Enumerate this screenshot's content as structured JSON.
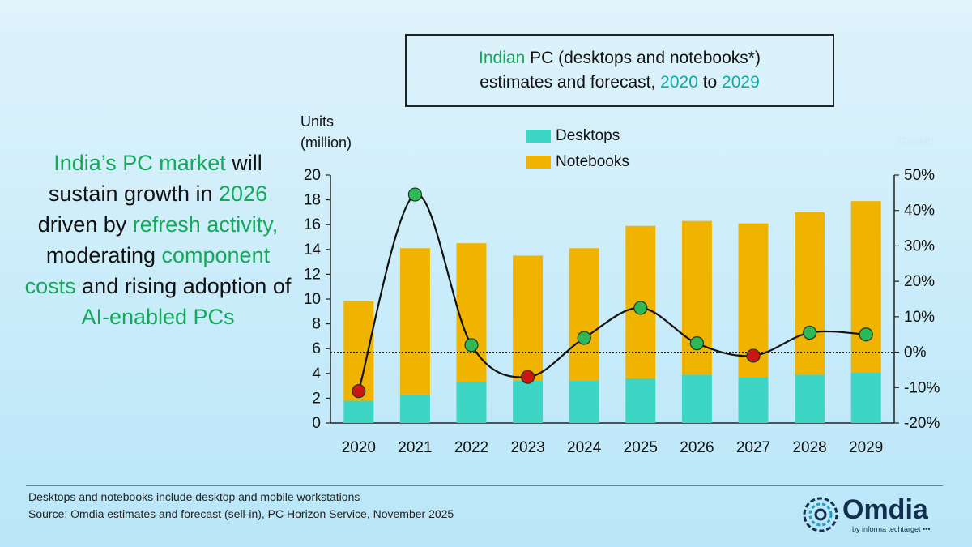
{
  "title": {
    "part1": "Indian",
    "part2": " PC (desktops and notebooks*)",
    "part3": "estimates and forecast, ",
    "part4": "2020",
    "part5": " to ",
    "part6": "2029"
  },
  "takeaway": {
    "t1": "India’s PC market",
    "t2": " will sustain growth in ",
    "t3": "2026",
    "t4": " driven by ",
    "t5": "refresh activity,",
    "t6": " moderating ",
    "t7": "component costs",
    "t8": " and rising adoption of ",
    "t9": "AI-enabled PCs"
  },
  "units_label_1": "Units",
  "units_label_2": "(million)",
  "right_axis_faded_label": "Growth",
  "colors": {
    "desktops": "#3dd6c5",
    "notebooks": "#f0b400",
    "dot_positive": "#2fb856",
    "dot_negative": "#cc1515",
    "accent_green": "#15a85a",
    "accent_teal": "#16a9a3"
  },
  "chart_data": {
    "type": "bar",
    "stacked": true,
    "categories": [
      "2020",
      "2021",
      "2022",
      "2023",
      "2024",
      "2025",
      "2026",
      "2027",
      "2028",
      "2029"
    ],
    "series": [
      {
        "name": "Desktops",
        "values": [
          1.8,
          2.3,
          3.3,
          3.4,
          3.4,
          3.6,
          3.9,
          3.7,
          3.9,
          4.1
        ]
      },
      {
        "name": "Notebooks",
        "values": [
          8.0,
          11.8,
          11.2,
          10.1,
          10.7,
          12.3,
          12.4,
          12.4,
          13.1,
          13.8
        ]
      }
    ],
    "line": {
      "axis": "right",
      "values": [
        -11,
        44.5,
        2,
        -7,
        4,
        12.5,
        2.5,
        -1,
        5.5,
        5
      ],
      "zero_reference_line": true
    },
    "ylim": [
      0,
      20
    ],
    "yticks": [
      0,
      2,
      4,
      6,
      8,
      10,
      12,
      14,
      16,
      18,
      20
    ],
    "y2lim": [
      -20,
      50
    ],
    "y2ticks": [
      "-20%",
      "-10%",
      "0%",
      "10%",
      "20%",
      "30%",
      "40%",
      "50%"
    ],
    "y2tick_values": [
      -20,
      -10,
      0,
      10,
      20,
      30,
      40,
      50
    ],
    "legend": "top-center"
  },
  "footnote_1": "Desktops and notebooks include desktop and mobile workstations",
  "footnote_2": "Source: Omdia estimates and forecast (sell-in), PC Horizon Service, November 2025",
  "logo": {
    "word": "Omdia",
    "sub": "by informa techtarget •••"
  }
}
